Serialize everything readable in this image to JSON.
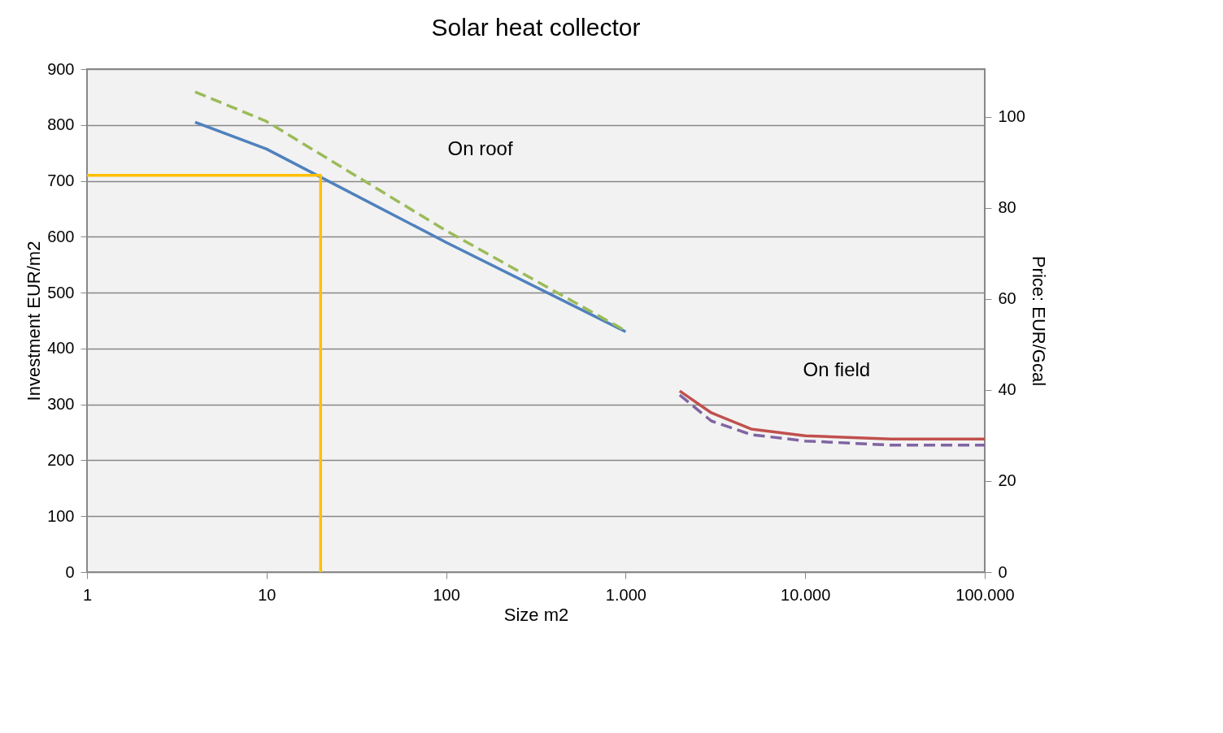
{
  "chart_data": {
    "type": "line",
    "title": "Solar heat collector",
    "xlabel": "Size m2",
    "ylabel": "Investment  EUR/m2",
    "y2label": "Price: EUR/Gcal",
    "log": "x",
    "xlim": [
      1,
      100000
    ],
    "xticks": [
      1,
      10,
      100,
      {
        "value": 1000,
        "label": "1.000"
      },
      {
        "value": 10000,
        "label": "10.000"
      },
      {
        "value": 100000,
        "label": "100.000"
      }
    ],
    "ylim": [
      0,
      900
    ],
    "yticks": [
      0,
      100,
      200,
      300,
      400,
      500,
      600,
      700,
      800,
      900
    ],
    "y2lim": [
      0,
      110.5
    ],
    "y2ticks": [
      0,
      20,
      40,
      60,
      80,
      100
    ],
    "grid": "y",
    "marker": "none",
    "series": [
      {
        "color": "#4f81bd",
        "line_style": "solid",
        "x": [
          4,
          10,
          100,
          1000
        ],
        "values": [
          805,
          757,
          590,
          430
        ]
      },
      {
        "color": "#9bbb59",
        "line_style": "dashed",
        "axis": "y2",
        "x": [
          4,
          10,
          100,
          1000
        ],
        "values": [
          105.5,
          99,
          75,
          53
        ]
      },
      {
        "color": "#c0504d",
        "line_style": "solid",
        "x": [
          2000,
          3000,
          5000,
          10000,
          30000,
          100000
        ],
        "values": [
          324,
          285,
          256,
          244,
          238,
          238
        ]
      },
      {
        "color": "#8064a2",
        "line_style": "dashed",
        "axis": "y2",
        "x": [
          2000,
          3000,
          5000,
          10000,
          30000,
          100000
        ],
        "values": [
          38.9,
          33.2,
          30.2,
          28.8,
          27.9,
          27.9
        ]
      },
      {
        "color": "#ffc000",
        "line_style": "solid",
        "x": [
          20,
          20,
          1
        ],
        "values": [
          0,
          710,
          710
        ]
      }
    ],
    "annotations": [
      "On roof",
      "On field"
    ]
  }
}
